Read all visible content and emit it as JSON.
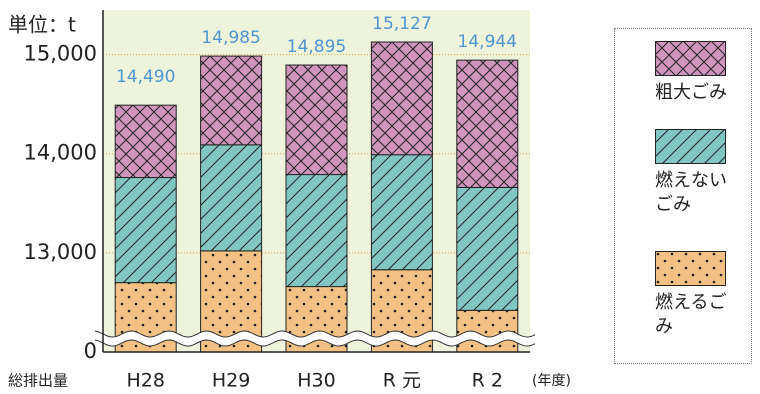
{
  "chart_data": {
    "type": "stacked_bar",
    "y_label": "単位：t",
    "x_label": "(年度)",
    "total_caption": "総排出量",
    "categories": [
      "H28",
      "H29",
      "H30",
      "R 元",
      "R 2"
    ],
    "series": [
      {
        "name": "燃えるごみ",
        "color": "#f3c184",
        "pattern": "dots",
        "values": [
          12700,
          13020,
          12660,
          12830,
          12420
        ]
      },
      {
        "name": "燃えないごみ",
        "color": "#82c6c3",
        "pattern": "diagonal",
        "values": [
          1060,
          1070,
          1130,
          1160,
          1240
        ]
      },
      {
        "name": "粗大ごみ",
        "color": "#cf95bd",
        "pattern": "cross",
        "values": [
          730,
          895,
          1105,
          1137,
          1284
        ]
      }
    ],
    "totals": [
      14490,
      14985,
      14895,
      15127,
      14944
    ],
    "total_labels": [
      "14,490",
      "14,985",
      "14,895",
      "15,127",
      "14,944"
    ],
    "ylim": [
      0,
      15450
    ],
    "axis_break": [
      0,
      12000
    ],
    "yticks": [
      0,
      {
        "value": 13000,
        "label": "13,000"
      },
      {
        "value": 14000,
        "label": "14,000"
      },
      {
        "value": 15000,
        "label": "15,000"
      }
    ],
    "grid": true
  }
}
